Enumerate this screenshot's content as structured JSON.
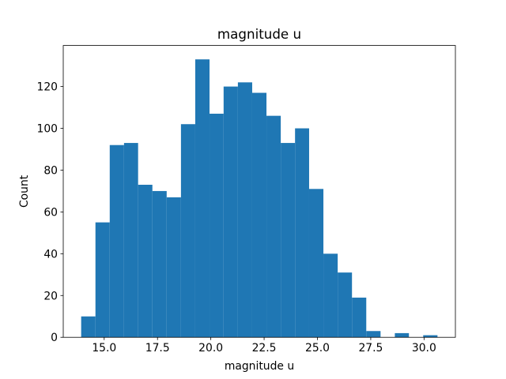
{
  "chart_data": {
    "type": "histogram",
    "title": "magnitude u",
    "x_label": "magnitude u",
    "y_label": "Count",
    "bins": [
      13.92,
      14.59,
      15.26,
      15.93,
      16.59,
      17.26,
      17.93,
      18.6,
      19.27,
      19.94,
      20.6,
      21.27,
      21.94,
      22.61,
      23.28,
      23.95,
      24.61,
      25.28,
      25.95,
      26.62,
      27.29,
      27.96,
      28.63,
      29.29,
      29.96,
      30.63
    ],
    "values": [
      10,
      55,
      92,
      93,
      73,
      70,
      67,
      102,
      133,
      107,
      120,
      122,
      117,
      106,
      93,
      100,
      71,
      40,
      31,
      19,
      3,
      0,
      2,
      0,
      1
    ],
    "color": "#1f77b4",
    "xlim": [
      13.08,
      31.47
    ],
    "xticks": [
      {
        "value": 15,
        "label": "15.0"
      },
      17.5,
      {
        "value": 20,
        "label": "20.0"
      },
      22.5,
      {
        "value": 25,
        "label": "25.0"
      },
      27.5,
      {
        "value": 30,
        "label": "30.0"
      }
    ],
    "ylim": [
      0,
      139.65
    ],
    "yticks": [
      0,
      20,
      40,
      60,
      80,
      100,
      120
    ]
  }
}
